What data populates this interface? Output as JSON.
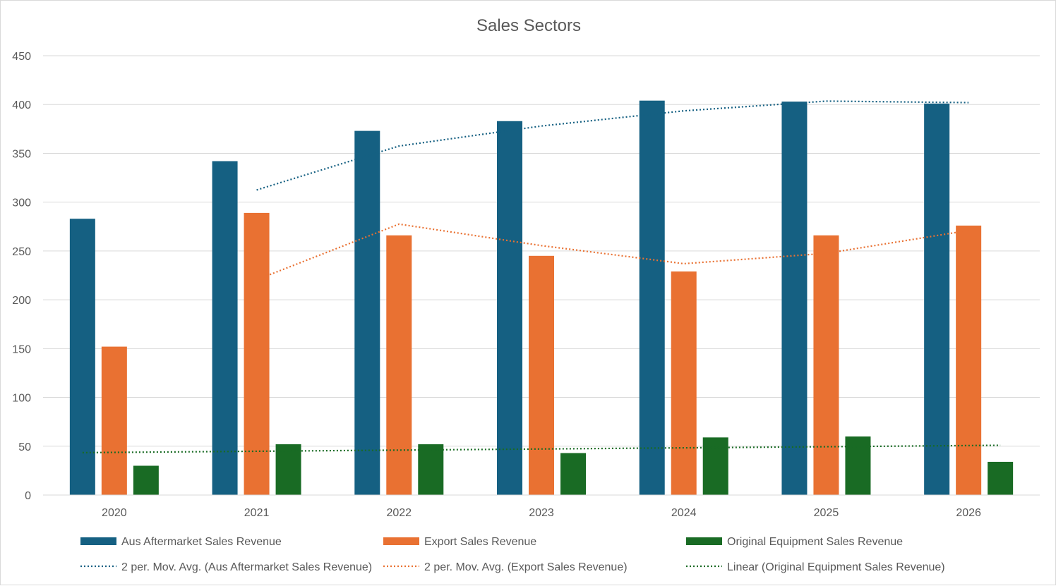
{
  "chart_data": {
    "type": "bar",
    "title": "Sales Sectors",
    "xlabel": "",
    "ylabel": "",
    "ylim": [
      0,
      450
    ],
    "yticks": [
      0,
      50,
      100,
      150,
      200,
      250,
      300,
      350,
      400,
      450
    ],
    "grid": true,
    "legend_position": "bottom",
    "categories": [
      "2020",
      "2021",
      "2022",
      "2023",
      "2024",
      "2025",
      "2026"
    ],
    "series": [
      {
        "name": "Aus Aftermarket Sales Revenue",
        "color": "#156082",
        "values": [
          283,
          342,
          373,
          383,
          404,
          403,
          401
        ]
      },
      {
        "name": "Export Sales Revenue",
        "color": "#E97132",
        "values": [
          152,
          289,
          266,
          245,
          229,
          266,
          276
        ]
      },
      {
        "name": "Original Equipment Sales Revenue",
        "color": "#196B24",
        "values": [
          30,
          52,
          52,
          43,
          59,
          60,
          34
        ]
      }
    ],
    "trendlines": [
      {
        "name": "2 per. Mov. Avg. (Aus Aftermarket Sales Revenue)",
        "color": "#156082",
        "type": "moving_average",
        "period": 2,
        "series_index": 0
      },
      {
        "name": "2 per. Mov. Avg. (Export Sales Revenue)",
        "color": "#E97132",
        "type": "moving_average",
        "period": 2,
        "series_index": 1
      },
      {
        "name": "Linear (Original Equipment Sales Revenue)",
        "color": "#196B24",
        "type": "linear",
        "series_index": 2
      }
    ]
  }
}
